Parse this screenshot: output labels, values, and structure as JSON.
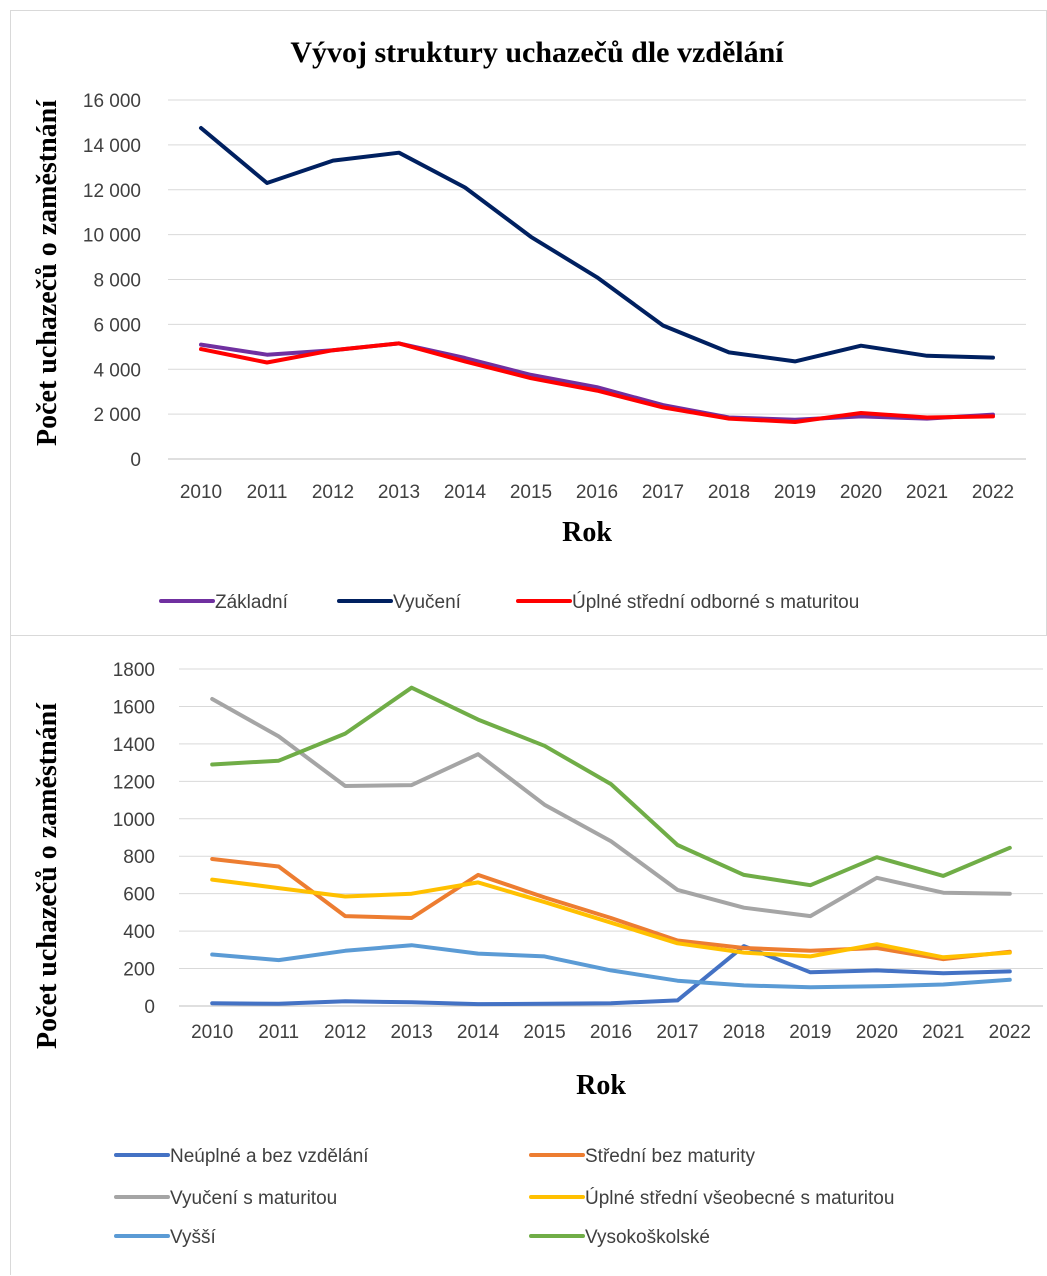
{
  "chart_data": [
    {
      "type": "line",
      "title": "Vývoj struktury uchazečů dle vzdělání",
      "xlabel": "Rok",
      "ylabel": "Počet uchazečů o zaměstnání",
      "ylim": [
        0,
        16000
      ],
      "yticks": [
        "0",
        "2 000",
        "4 000",
        "6 000",
        "8 000",
        "10 000",
        "12 000",
        "14 000",
        "16 000"
      ],
      "categories": [
        "2010",
        "2011",
        "2012",
        "2013",
        "2014",
        "2015",
        "2016",
        "2017",
        "2018",
        "2019",
        "2020",
        "2021",
        "2022"
      ],
      "grid": true,
      "legend": "bottom",
      "series": [
        {
          "name": "Základní",
          "color": "#7030a0",
          "values": [
            5100,
            4650,
            4850,
            5150,
            4500,
            3750,
            3200,
            2400,
            1850,
            1750,
            1900,
            1800,
            1980
          ]
        },
        {
          "name": "Vyučení",
          "color": "#002060",
          "values": [
            14750,
            12300,
            13300,
            13650,
            12100,
            9900,
            8100,
            5950,
            4750,
            4350,
            5050,
            4600,
            4520
          ]
        },
        {
          "name": "Úplné střední odborné s maturitou",
          "color": "#ff0000",
          "values": [
            4900,
            4300,
            4850,
            5150,
            4350,
            3600,
            3050,
            2300,
            1800,
            1650,
            2050,
            1850,
            1900
          ]
        }
      ]
    },
    {
      "type": "line",
      "title": "",
      "xlabel": "Rok",
      "ylabel": "Počet uchazečů o zaměstnání",
      "ylim": [
        0,
        1800
      ],
      "yticks": [
        "0",
        "200",
        "400",
        "600",
        "800",
        "1000",
        "1200",
        "1400",
        "1600",
        "1800"
      ],
      "categories": [
        "2010",
        "2011",
        "2012",
        "2013",
        "2014",
        "2015",
        "2016",
        "2017",
        "2018",
        "2019",
        "2020",
        "2021",
        "2022"
      ],
      "grid": true,
      "legend": "bottom",
      "series": [
        {
          "name": "Neúplné a bez vzdělání",
          "color": "#4472c4",
          "values": [
            15,
            12,
            25,
            20,
            10,
            12,
            15,
            30,
            320,
            180,
            190,
            175,
            185
          ]
        },
        {
          "name": "Střední bez maturity",
          "color": "#ed7d31",
          "values": [
            785,
            745,
            480,
            470,
            700,
            580,
            470,
            350,
            310,
            295,
            310,
            250,
            290
          ]
        },
        {
          "name": "Vyučení s maturitou",
          "color": "#a5a5a5",
          "values": [
            1640,
            1440,
            1175,
            1180,
            1345,
            1075,
            880,
            620,
            525,
            480,
            685,
            605,
            600
          ]
        },
        {
          "name": "Úplné střední všeobecné s maturitou",
          "color": "#ffc000",
          "values": [
            675,
            630,
            585,
            600,
            660,
            555,
            445,
            335,
            285,
            265,
            330,
            260,
            285
          ]
        },
        {
          "name": "Vyšší",
          "color": "#5b9bd5",
          "values": [
            275,
            245,
            295,
            325,
            280,
            265,
            190,
            135,
            110,
            100,
            105,
            115,
            140
          ]
        },
        {
          "name": "Vysokoškolské",
          "color": "#70ad47",
          "values": [
            1290,
            1310,
            1455,
            1700,
            1530,
            1390,
            1185,
            860,
            700,
            645,
            795,
            695,
            845
          ]
        }
      ]
    }
  ]
}
